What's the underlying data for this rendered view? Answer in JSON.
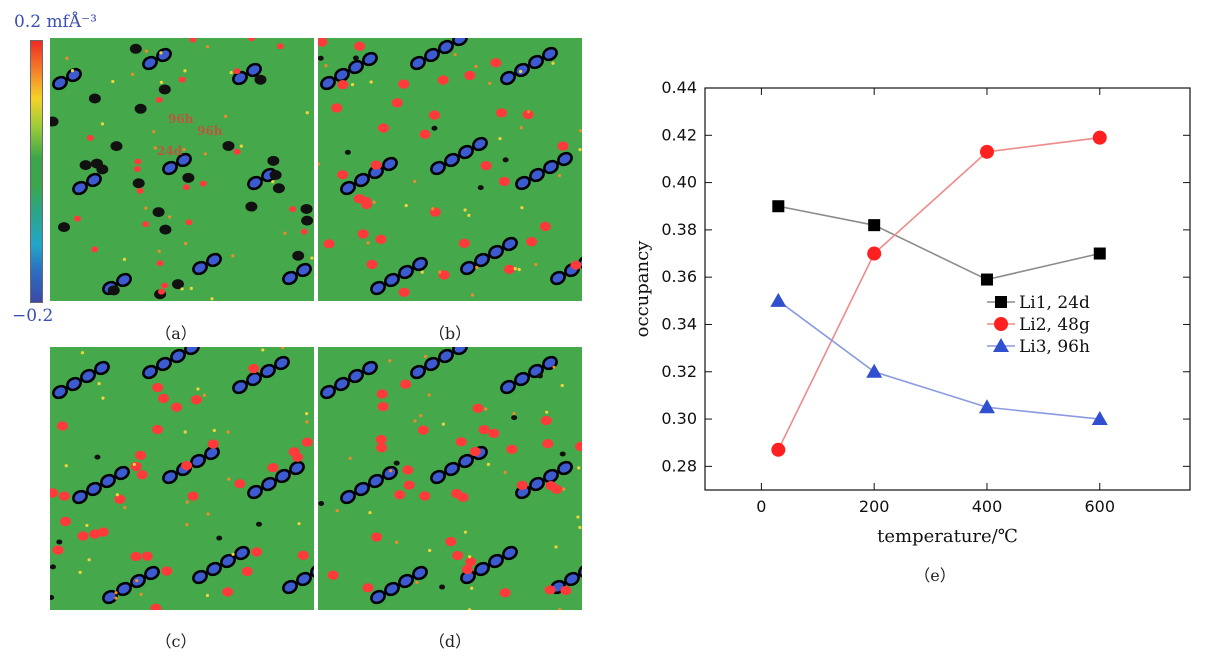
{
  "colorbar": {
    "max_label": "0.2 mfÅ⁻³",
    "min_label": "−0.2"
  },
  "panels": {
    "a": {
      "label": "（a）",
      "site_labels": [
        "96h",
        "96h",
        "24d"
      ]
    },
    "b": {
      "label": "（b）"
    },
    "c": {
      "label": "（c）"
    },
    "d": {
      "label": "（d）"
    },
    "e": {
      "label": "（e）"
    }
  },
  "colors": {
    "map_bg": "#45a94b",
    "li1": "#000000",
    "li2": "#ff3a3a",
    "li3": "#3d5bd0"
  },
  "chart_data": {
    "type": "line",
    "xlabel": "temperature/℃",
    "ylabel": "occupancy",
    "xlim": [
      -100,
      760
    ],
    "ylim": [
      0.27,
      0.44
    ],
    "xticks": [
      "0",
      "200",
      "400",
      "600"
    ],
    "yticks": [
      "0.28",
      "0.30",
      "0.32",
      "0.34",
      "0.36",
      "0.38",
      "0.40",
      "0.42",
      "0.44"
    ],
    "x": [
      30,
      200,
      400,
      600
    ],
    "series": [
      {
        "name": "Li1, 24d",
        "marker": "square",
        "line_color": "#8c8c8c",
        "marker_color": "#000000",
        "values": [
          0.39,
          0.382,
          0.359,
          0.37
        ]
      },
      {
        "name": "Li2, 48g",
        "marker": "circle",
        "line_color": "#f08a8a",
        "marker_color": "#ff2020",
        "values": [
          0.287,
          0.37,
          0.413,
          0.419
        ]
      },
      {
        "name": "Li3, 96h",
        "marker": "triangle",
        "line_color": "#8a9ae0",
        "marker_color": "#3050d0",
        "values": [
          0.35,
          0.32,
          0.305,
          0.3
        ]
      }
    ],
    "legend_position": "center-right"
  }
}
